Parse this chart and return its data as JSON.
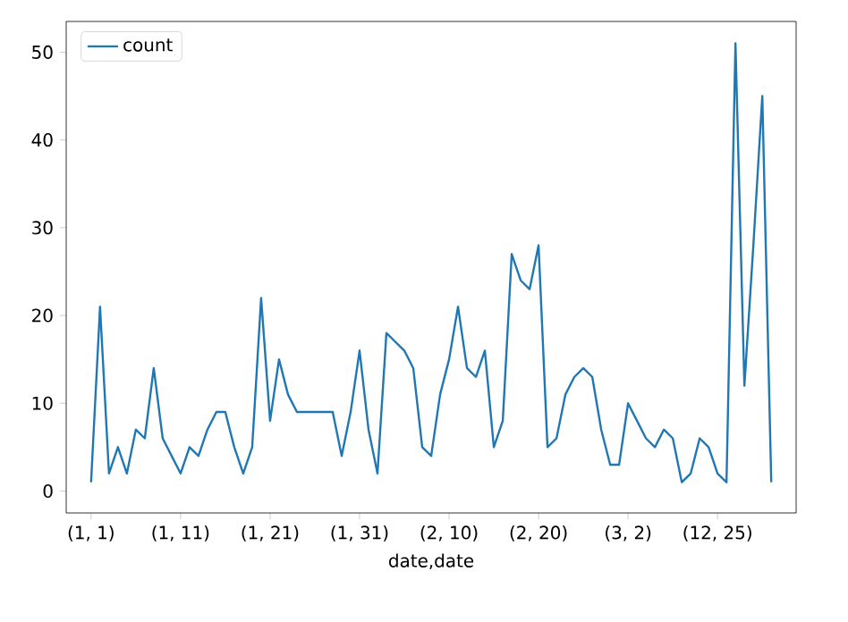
{
  "chart_data": {
    "type": "line",
    "xlabel": "date,date",
    "categories": [
      "(1, 1)",
      null,
      null,
      null,
      null,
      null,
      null,
      null,
      null,
      null,
      "(1, 11)",
      null,
      null,
      null,
      null,
      null,
      null,
      null,
      null,
      null,
      "(1, 21)",
      null,
      null,
      null,
      null,
      null,
      null,
      null,
      null,
      null,
      "(1, 31)",
      null,
      null,
      null,
      null,
      null,
      null,
      null,
      null,
      null,
      "(2, 10)",
      null,
      null,
      null,
      null,
      null,
      null,
      null,
      null,
      null,
      "(2, 20)",
      null,
      null,
      null,
      null,
      null,
      null,
      null,
      null,
      null,
      "(3, 2)",
      null,
      null,
      null,
      null,
      null,
      null,
      null,
      null,
      null,
      "(12, 25)",
      null,
      null,
      null,
      null,
      null,
      null
    ],
    "series": [
      {
        "name": "count",
        "color": "#1f77b4",
        "values": [
          1,
          21,
          2,
          5,
          2,
          7,
          6,
          14,
          6,
          4,
          2,
          5,
          4,
          7,
          9,
          9,
          5,
          2,
          5,
          22,
          8,
          15,
          11,
          9,
          9,
          9,
          9,
          9,
          4,
          9,
          16,
          7,
          2,
          18,
          17,
          16,
          14,
          5,
          4,
          11,
          15,
          21,
          14,
          13,
          16,
          5,
          8,
          27,
          24,
          23,
          28,
          5,
          6,
          11,
          13,
          14,
          13,
          7,
          3,
          3,
          10,
          8,
          6,
          5,
          7,
          6,
          1,
          2,
          6,
          5,
          2,
          1,
          51,
          12,
          28,
          45,
          1
        ]
      }
    ],
    "ylim": [
      -2.5,
      53.5
    ],
    "yticks": [
      0,
      10,
      20,
      30,
      40,
      50
    ],
    "legend": "top left",
    "grid": false,
    "marker": "none",
    "line_style": "solid"
  }
}
